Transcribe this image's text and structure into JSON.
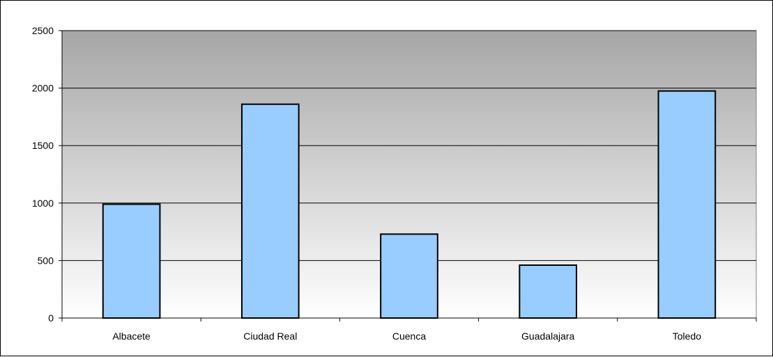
{
  "chart_data": {
    "type": "bar",
    "title": "",
    "xlabel": "",
    "ylabel": "",
    "categories": [
      "Albacete",
      "Ciudad Real",
      "Cuenca",
      "Guadalajara",
      "Toledo"
    ],
    "values": [
      990,
      1860,
      730,
      460,
      1975
    ],
    "ylim": [
      0,
      2500
    ],
    "yticks": [
      0,
      500,
      1000,
      1500,
      2000,
      2500
    ],
    "grid": true,
    "legend": "none",
    "colors": {
      "bar_fill": "#99ccff",
      "bar_stroke": "#000000",
      "plot_gradient_top": "#a6a6a6",
      "plot_gradient_bottom": "#ffffff",
      "gridline": "#000000"
    }
  }
}
